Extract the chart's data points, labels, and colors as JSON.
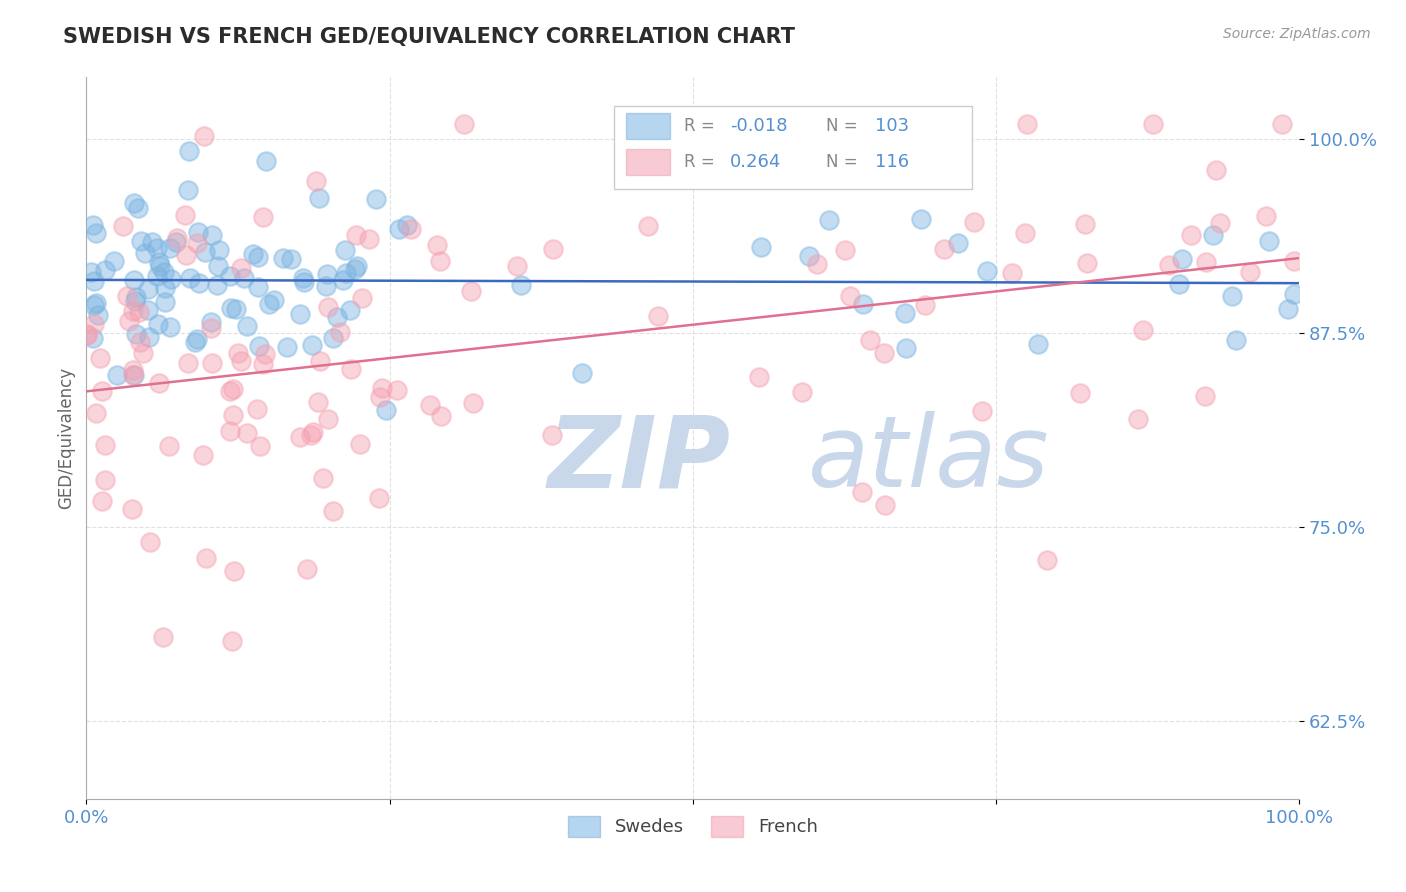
{
  "title": "SWEDISH VS FRENCH GED/EQUIVALENCY CORRELATION CHART",
  "source_text": "Source: ZipAtlas.com",
  "ylabel": "GED/Equivalency",
  "xlim": [
    0.0,
    1.0
  ],
  "ylim": [
    0.575,
    1.04
  ],
  "yticks": [
    0.625,
    0.75,
    0.875,
    1.0
  ],
  "ytick_labels": [
    "62.5%",
    "75.0%",
    "87.5%",
    "100.0%"
  ],
  "swedes_R": -0.018,
  "swedes_N": 103,
  "french_R": 0.264,
  "french_N": 116,
  "swedes_color": "#7ab3e0",
  "french_color": "#f4a0b0",
  "swedes_line_color": "#3a6abf",
  "french_line_color": "#e07090",
  "background_color": "#ffffff",
  "grid_color": "#cccccc",
  "title_color": "#2c2c2c",
  "tick_color": "#5590d0",
  "watermark_color": "#c8d8ea",
  "legend_box_color": "#eeeeee",
  "sw_trend_y0": 0.912,
  "sw_trend_y1": 0.91,
  "fr_trend_y0": 0.82,
  "fr_trend_y1": 0.93
}
